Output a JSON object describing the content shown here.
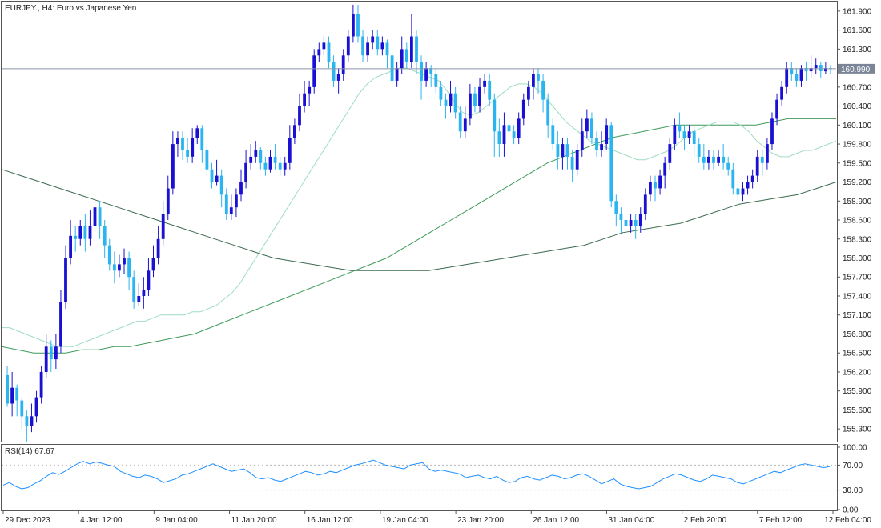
{
  "chart_title": "EURJPY., H4:  Euro vs Japanese Yen",
  "current_price": "160.990",
  "main_y_ticks": [
    "161.900",
    "161.600",
    "161.300",
    "160.700",
    "160.400",
    "160.100",
    "159.800",
    "159.500",
    "159.200",
    "158.900",
    "158.600",
    "158.300",
    "158.000",
    "157.700",
    "157.400",
    "157.100",
    "156.800",
    "156.500",
    "156.200",
    "155.900",
    "155.600",
    "155.300"
  ],
  "x_tick_labels": [
    "29 Dec 2023",
    "4 Jan 12:00",
    "9 Jan 04:00",
    "11 Jan 20:00",
    "16 Jan 12:00",
    "19 Jan 04:00",
    "23 Jan 20:00",
    "26 Jan 12:00",
    "31 Jan 04:00",
    "2 Feb 20:00",
    "7 Feb 12:00",
    "12 Feb 04:00"
  ],
  "rsi_title": "RSI(14) 67.67",
  "rsi_y_ticks": [
    "100.00",
    "70.00",
    "30.00",
    "0.00"
  ],
  "colors": {
    "bull": "#1a10d4",
    "bear": "#2ab4f0",
    "ma_fast": "#9fdcc0",
    "ma_mid": "#3e9a5a",
    "ma_slow": "#3a6a4e",
    "rsi": "#1e90ff",
    "price_line": "#8a94a8",
    "border": "#555555"
  },
  "chart_data": {
    "type": "candlestick",
    "title": "EURJPY., H4:  Euro vs Japanese Yen",
    "ylim": [
      155.1,
      162.05
    ],
    "current_price": 160.99,
    "candles": [
      [
        156.15,
        155.7,
        156.3,
        155.65
      ],
      [
        155.7,
        155.95,
        156.2,
        155.5
      ],
      [
        155.95,
        155.75,
        156.0,
        155.5
      ],
      [
        155.75,
        155.5,
        155.8,
        155.3
      ],
      [
        155.5,
        155.35,
        155.6,
        155.1
      ],
      [
        155.35,
        155.5,
        155.7,
        155.25
      ],
      [
        155.5,
        155.8,
        155.9,
        155.4
      ],
      [
        155.8,
        156.2,
        156.3,
        155.7
      ],
      [
        156.2,
        156.6,
        156.8,
        156.1
      ],
      [
        156.6,
        156.4,
        156.7,
        156.2
      ],
      [
        156.4,
        156.6,
        156.8,
        156.25
      ],
      [
        156.6,
        157.3,
        157.5,
        156.5
      ],
      [
        157.3,
        158.0,
        158.2,
        157.2
      ],
      [
        158.0,
        158.35,
        158.6,
        157.9
      ],
      [
        158.35,
        158.3,
        158.5,
        158.1
      ],
      [
        158.3,
        158.5,
        158.6,
        158.2
      ],
      [
        158.5,
        158.3,
        158.7,
        158.1
      ],
      [
        158.3,
        158.5,
        158.75,
        158.2
      ],
      [
        158.5,
        158.8,
        159.0,
        158.4
      ],
      [
        158.8,
        158.5,
        158.9,
        158.3
      ],
      [
        158.5,
        158.2,
        158.6,
        158.0
      ],
      [
        158.2,
        157.9,
        158.3,
        157.8
      ],
      [
        157.9,
        157.8,
        158.1,
        157.6
      ],
      [
        157.8,
        157.9,
        158.05,
        157.7
      ],
      [
        157.9,
        158.0,
        158.15,
        157.75
      ],
      [
        158.0,
        157.7,
        158.1,
        157.5
      ],
      [
        157.7,
        157.3,
        157.8,
        157.2
      ],
      [
        157.3,
        157.4,
        157.6,
        157.25
      ],
      [
        157.4,
        157.5,
        157.7,
        157.2
      ],
      [
        157.5,
        157.8,
        158.0,
        157.4
      ],
      [
        157.8,
        158.0,
        158.2,
        157.7
      ],
      [
        158.0,
        158.3,
        158.5,
        157.9
      ],
      [
        158.3,
        158.7,
        158.9,
        158.2
      ],
      [
        158.7,
        159.1,
        159.3,
        158.6
      ],
      [
        159.1,
        159.8,
        160.0,
        159.0
      ],
      [
        159.8,
        159.9,
        160.0,
        159.6
      ],
      [
        159.9,
        159.7,
        160.0,
        159.55
      ],
      [
        159.7,
        159.6,
        159.9,
        159.5
      ],
      [
        159.6,
        159.9,
        160.05,
        159.5
      ],
      [
        159.9,
        160.05,
        160.1,
        159.8
      ],
      [
        160.05,
        159.7,
        160.1,
        159.5
      ],
      [
        159.7,
        159.4,
        159.8,
        159.3
      ],
      [
        159.4,
        159.2,
        159.5,
        159.1
      ],
      [
        159.2,
        159.3,
        159.55,
        159.15
      ],
      [
        159.3,
        159.0,
        159.4,
        158.8
      ],
      [
        159.0,
        158.7,
        159.1,
        158.6
      ],
      [
        158.7,
        158.8,
        159.0,
        158.6
      ],
      [
        158.8,
        159.0,
        159.1,
        158.65
      ],
      [
        159.0,
        159.2,
        159.4,
        158.9
      ],
      [
        159.2,
        159.5,
        159.7,
        159.1
      ],
      [
        159.5,
        159.6,
        159.8,
        159.4
      ],
      [
        159.6,
        159.7,
        159.85,
        159.5
      ],
      [
        159.7,
        159.5,
        159.75,
        159.4
      ],
      [
        159.5,
        159.4,
        159.6,
        159.3
      ],
      [
        159.4,
        159.6,
        159.7,
        159.35
      ],
      [
        159.6,
        159.5,
        159.8,
        159.4
      ],
      [
        159.5,
        159.4,
        159.6,
        159.3
      ],
      [
        159.4,
        159.5,
        159.6,
        159.3
      ],
      [
        159.5,
        159.9,
        160.1,
        159.4
      ],
      [
        159.9,
        160.1,
        160.2,
        159.8
      ],
      [
        160.1,
        160.4,
        160.6,
        160.0
      ],
      [
        160.4,
        160.6,
        160.8,
        160.3
      ],
      [
        160.6,
        160.7,
        160.8,
        160.4
      ],
      [
        160.7,
        161.2,
        161.3,
        160.6
      ],
      [
        161.2,
        161.3,
        161.4,
        161.1
      ],
      [
        161.3,
        161.4,
        161.5,
        161.2
      ],
      [
        161.4,
        161.1,
        161.5,
        161.0
      ],
      [
        161.1,
        160.8,
        161.2,
        160.7
      ],
      [
        160.8,
        160.9,
        161.0,
        160.6
      ],
      [
        160.9,
        161.2,
        161.3,
        160.8
      ],
      [
        161.2,
        161.5,
        161.6,
        161.1
      ],
      [
        161.5,
        161.85,
        162.0,
        161.4
      ],
      [
        161.85,
        161.5,
        162.0,
        161.4
      ],
      [
        161.5,
        161.2,
        161.6,
        161.1
      ],
      [
        161.2,
        161.4,
        161.5,
        161.1
      ],
      [
        161.4,
        161.5,
        161.6,
        161.3
      ],
      [
        161.5,
        161.3,
        161.6,
        161.2
      ],
      [
        161.3,
        161.4,
        161.5,
        161.2
      ],
      [
        161.4,
        161.2,
        161.45,
        161.0
      ],
      [
        161.2,
        160.8,
        161.3,
        160.7
      ],
      [
        160.8,
        161.0,
        161.1,
        160.7
      ],
      [
        161.0,
        161.3,
        161.5,
        160.9
      ],
      [
        161.3,
        161.1,
        161.4,
        161.0
      ],
      [
        161.1,
        161.5,
        161.85,
        161.0
      ],
      [
        161.5,
        161.1,
        161.6,
        160.9
      ],
      [
        161.1,
        160.8,
        161.2,
        160.5
      ],
      [
        160.8,
        161.0,
        161.1,
        160.7
      ],
      [
        161.0,
        160.9,
        161.05,
        160.7
      ],
      [
        160.9,
        160.7,
        161.0,
        160.6
      ],
      [
        160.7,
        160.5,
        160.8,
        160.4
      ],
      [
        160.5,
        160.4,
        160.6,
        160.2
      ],
      [
        160.4,
        160.6,
        160.8,
        160.3
      ],
      [
        160.6,
        160.3,
        160.7,
        160.2
      ],
      [
        160.3,
        160.0,
        160.4,
        159.9
      ],
      [
        160.0,
        160.2,
        160.4,
        159.9
      ],
      [
        160.2,
        160.6,
        160.75,
        160.1
      ],
      [
        160.6,
        160.4,
        160.7,
        160.3
      ],
      [
        160.4,
        160.7,
        160.85,
        160.3
      ],
      [
        160.7,
        160.8,
        160.9,
        160.6
      ],
      [
        160.8,
        160.5,
        160.9,
        160.4
      ],
      [
        160.5,
        160.0,
        160.6,
        159.6
      ],
      [
        160.0,
        159.8,
        160.2,
        159.6
      ],
      [
        159.8,
        160.1,
        160.3,
        159.6
      ],
      [
        160.1,
        160.0,
        160.2,
        159.8
      ],
      [
        160.0,
        159.9,
        160.1,
        159.8
      ],
      [
        159.9,
        160.2,
        160.3,
        159.8
      ],
      [
        160.2,
        160.5,
        160.6,
        160.1
      ],
      [
        160.5,
        160.7,
        160.8,
        160.4
      ],
      [
        160.7,
        160.9,
        161.0,
        160.5
      ],
      [
        160.9,
        160.8,
        161.0,
        160.6
      ],
      [
        160.8,
        160.5,
        160.9,
        160.3
      ],
      [
        160.5,
        160.1,
        160.6,
        159.9
      ],
      [
        160.1,
        159.8,
        160.2,
        159.7
      ],
      [
        159.8,
        159.6,
        160.0,
        159.4
      ],
      [
        159.6,
        159.8,
        159.9,
        159.4
      ],
      [
        159.8,
        159.6,
        159.9,
        159.4
      ],
      [
        159.6,
        159.4,
        159.7,
        159.2
      ],
      [
        159.4,
        159.7,
        159.8,
        159.3
      ],
      [
        159.7,
        160.0,
        160.2,
        159.6
      ],
      [
        160.0,
        160.2,
        160.35,
        159.9
      ],
      [
        160.2,
        159.9,
        160.3,
        159.8
      ],
      [
        159.9,
        159.7,
        160.0,
        159.6
      ],
      [
        159.7,
        159.8,
        160.0,
        159.6
      ],
      [
        159.8,
        160.1,
        160.2,
        159.7
      ],
      [
        160.1,
        158.9,
        160.15,
        158.8
      ],
      [
        158.9,
        158.7,
        159.0,
        158.5
      ],
      [
        158.7,
        158.6,
        158.8,
        158.4
      ],
      [
        158.6,
        158.5,
        158.7,
        158.1
      ],
      [
        158.5,
        158.6,
        158.7,
        158.4
      ],
      [
        158.6,
        158.5,
        158.7,
        158.3
      ],
      [
        158.5,
        158.7,
        158.8,
        158.4
      ],
      [
        158.7,
        159.0,
        159.1,
        158.6
      ],
      [
        159.0,
        159.2,
        159.3,
        158.9
      ],
      [
        159.2,
        159.1,
        159.3,
        158.9
      ],
      [
        159.1,
        159.3,
        159.4,
        159.0
      ],
      [
        159.3,
        159.5,
        159.6,
        159.1
      ],
      [
        159.5,
        159.8,
        159.9,
        159.4
      ],
      [
        159.8,
        160.1,
        160.2,
        159.7
      ],
      [
        160.1,
        160.0,
        160.3,
        159.9
      ],
      [
        160.0,
        159.9,
        160.1,
        159.7
      ],
      [
        159.9,
        160.0,
        160.1,
        159.8
      ],
      [
        160.0,
        159.8,
        160.1,
        159.6
      ],
      [
        159.8,
        159.6,
        159.9,
        159.5
      ],
      [
        159.6,
        159.5,
        159.8,
        159.4
      ],
      [
        159.5,
        159.6,
        159.7,
        159.4
      ],
      [
        159.6,
        159.5,
        159.7,
        159.4
      ],
      [
        159.5,
        159.6,
        159.7,
        159.45
      ],
      [
        159.6,
        159.5,
        159.8,
        159.4
      ],
      [
        159.5,
        159.4,
        159.6,
        159.3
      ],
      [
        159.4,
        159.1,
        159.5,
        159.0
      ],
      [
        159.1,
        159.0,
        159.2,
        158.9
      ],
      [
        159.0,
        159.1,
        159.2,
        158.9
      ],
      [
        159.1,
        159.2,
        159.3,
        159.0
      ],
      [
        159.2,
        159.3,
        159.4,
        159.1
      ],
      [
        159.3,
        159.6,
        159.7,
        159.2
      ],
      [
        159.6,
        159.5,
        159.7,
        159.3
      ],
      [
        159.5,
        159.8,
        159.9,
        159.4
      ],
      [
        159.8,
        160.2,
        160.3,
        159.7
      ],
      [
        160.2,
        160.5,
        160.6,
        160.1
      ],
      [
        160.5,
        160.7,
        160.8,
        160.4
      ],
      [
        160.7,
        161.0,
        161.1,
        160.6
      ],
      [
        161.0,
        160.9,
        161.1,
        160.8
      ],
      [
        160.9,
        160.8,
        161.0,
        160.7
      ],
      [
        160.8,
        161.0,
        161.05,
        160.7
      ],
      [
        161.0,
        160.95,
        161.1,
        160.8
      ],
      [
        160.95,
        161.0,
        161.2,
        160.85
      ],
      [
        161.0,
        161.05,
        161.15,
        160.9
      ],
      [
        161.05,
        160.95,
        161.1,
        160.85
      ],
      [
        160.95,
        161.0,
        161.1,
        160.9
      ],
      [
        161.0,
        160.99,
        161.05,
        160.9
      ]
    ],
    "ma_fast": [
      156.9,
      156.9,
      156.85,
      156.8,
      156.75,
      156.7,
      156.65,
      156.6,
      156.6,
      156.6,
      156.65,
      156.7,
      156.75,
      156.8,
      156.85,
      156.9,
      156.95,
      157.0,
      157.0,
      157.05,
      157.1,
      157.1,
      157.1,
      157.1,
      157.15,
      157.15,
      157.2,
      157.25,
      157.35,
      157.45,
      157.6,
      157.8,
      158.0,
      158.2,
      158.4,
      158.6,
      158.8,
      159.0,
      159.2,
      159.4,
      159.6,
      159.8,
      160.0,
      160.2,
      160.4,
      160.6,
      160.75,
      160.85,
      160.9,
      160.95,
      161.0,
      161.0,
      160.95,
      160.9,
      160.85,
      160.8,
      160.65,
      160.45,
      160.3,
      160.25,
      160.3,
      160.4,
      160.5,
      160.6,
      160.7,
      160.75,
      160.75,
      160.7,
      160.6,
      160.45,
      160.3,
      160.15,
      160.05,
      159.95,
      159.85,
      159.8,
      159.75,
      159.7,
      159.65,
      159.6,
      159.55,
      159.55,
      159.6,
      159.65,
      159.7,
      159.8,
      159.9,
      160.0,
      160.05,
      160.1,
      160.15,
      160.15,
      160.15,
      160.1,
      160.0,
      159.85,
      159.75,
      159.65,
      159.6,
      159.6,
      159.65,
      159.7,
      159.7,
      159.75,
      159.8,
      159.85
    ],
    "ma_mid": [
      156.6,
      156.55,
      156.5,
      156.5,
      156.5,
      156.55,
      156.55,
      156.6,
      156.6,
      156.65,
      156.7,
      156.75,
      156.8,
      156.9,
      157.0,
      157.1,
      157.2,
      157.3,
      157.4,
      157.5,
      157.6,
      157.7,
      157.8,
      157.9,
      158.0,
      158.15,
      158.3,
      158.45,
      158.6,
      158.75,
      158.9,
      159.05,
      159.2,
      159.35,
      159.5,
      159.6,
      159.7,
      159.8,
      159.9,
      159.95,
      160.0,
      160.05,
      160.1,
      160.1,
      160.1,
      160.1,
      160.1,
      160.1,
      160.15,
      160.2,
      160.2,
      160.2,
      160.2
    ],
    "ma_slow": [
      159.4,
      159.3,
      159.2,
      159.1,
      159.0,
      158.9,
      158.8,
      158.7,
      158.6,
      158.5,
      158.4,
      158.3,
      158.2,
      158.1,
      158.0,
      157.95,
      157.9,
      157.85,
      157.8,
      157.8,
      157.8,
      157.8,
      157.8,
      157.85,
      157.9,
      157.95,
      158.0,
      158.05,
      158.1,
      158.15,
      158.2,
      158.3,
      158.4,
      158.45,
      158.5,
      158.55,
      158.65,
      158.75,
      158.85,
      158.9,
      158.95,
      159.0,
      159.1,
      159.2
    ],
    "rsi": {
      "name": "RSI(14)",
      "current": 67.67,
      "ylim": [
        0,
        100
      ],
      "levels": [
        70,
        30
      ],
      "values": [
        38,
        42,
        36,
        32,
        34,
        40,
        45,
        52,
        58,
        55,
        60,
        66,
        72,
        76,
        72,
        75,
        73,
        70,
        68,
        60,
        56,
        52,
        50,
        54,
        52,
        48,
        42,
        45,
        48,
        54,
        56,
        60,
        64,
        68,
        72,
        68,
        64,
        60,
        62,
        64,
        58,
        50,
        48,
        50,
        46,
        44,
        48,
        52,
        56,
        60,
        58,
        54,
        56,
        60,
        58,
        62,
        66,
        70,
        72,
        75,
        78,
        74,
        70,
        68,
        66,
        64,
        70,
        72,
        74,
        64,
        60,
        62,
        60,
        58,
        56,
        50,
        52,
        54,
        50,
        48,
        52,
        46,
        42,
        44,
        50,
        52,
        48,
        46,
        50,
        54,
        52,
        48,
        50,
        54,
        56,
        52,
        46,
        40,
        44,
        48,
        40,
        36,
        34,
        32,
        34,
        36,
        42,
        48,
        52,
        56,
        54,
        50,
        46,
        44,
        48,
        54,
        52,
        50,
        48,
        42,
        40,
        44,
        48,
        52,
        56,
        60,
        58,
        62,
        66,
        70,
        72,
        70,
        68,
        66,
        67.67
      ]
    },
    "x_tick_labels": [
      "29 Dec 2023",
      "4 Jan 12:00",
      "9 Jan 04:00",
      "11 Jan 20:00",
      "16 Jan 12:00",
      "19 Jan 04:00",
      "23 Jan 20:00",
      "26 Jan 12:00",
      "31 Jan 04:00",
      "2 Feb 20:00",
      "7 Feb 12:00",
      "12 Feb 04:00"
    ]
  }
}
